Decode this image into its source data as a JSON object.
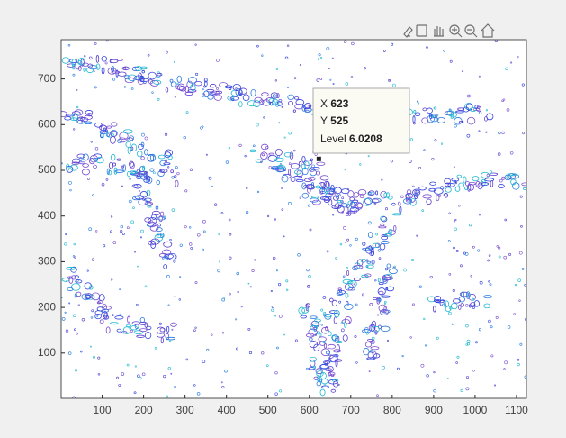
{
  "chart_data": {
    "type": "contour",
    "xlim": [
      1,
      1124
    ],
    "ylim": [
      1,
      786
    ],
    "xticks": [
      100,
      200,
      300,
      400,
      500,
      600,
      700,
      800,
      900,
      1000,
      1100
    ],
    "yticks": [
      100,
      200,
      300,
      400,
      500,
      600,
      700
    ],
    "datatip": {
      "x_label": "X",
      "x": 623,
      "y_label": "Y",
      "y": 525,
      "level_label": "Level",
      "level": 6.0208
    }
  }
}
